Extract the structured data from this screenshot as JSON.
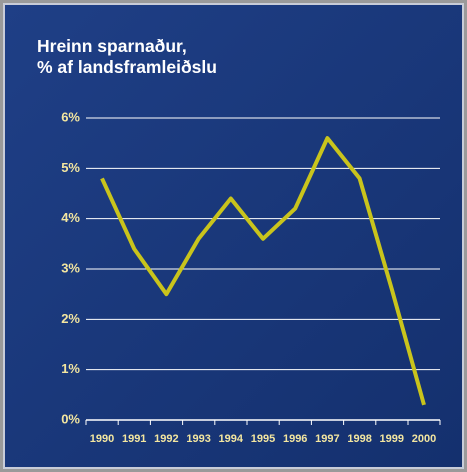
{
  "chart_data": {
    "type": "line",
    "title": "Hreinn sparnaður,\n% af landsframleiðslu",
    "categories": [
      "1990",
      "1991",
      "1992",
      "1993",
      "1994",
      "1995",
      "1996",
      "1997",
      "1998",
      "1999",
      "2000"
    ],
    "series": [
      {
        "name": "Hreinn sparnaður",
        "color": "#c9c41c",
        "values": [
          4.8,
          3.4,
          2.5,
          3.6,
          4.4,
          3.6,
          4.2,
          5.6,
          4.8,
          2.6,
          0.3
        ]
      }
    ],
    "ylim": [
      0,
      6
    ],
    "yticks": [
      {
        "value": 0,
        "label": "0%"
      },
      {
        "value": 1,
        "label": "1%"
      },
      {
        "value": 2,
        "label": "2%"
      },
      {
        "value": 3,
        "label": "3%"
      },
      {
        "value": 4,
        "label": "4%"
      },
      {
        "value": 5,
        "label": "5%"
      },
      {
        "value": 6,
        "label": "6%"
      }
    ],
    "grid": true
  }
}
